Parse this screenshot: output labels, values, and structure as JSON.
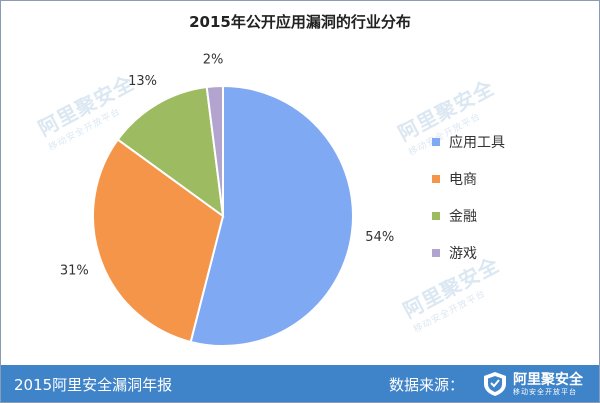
{
  "chart_data": {
    "type": "pie",
    "title": "2015年公开应用漏洞的行业分布",
    "slices": [
      {
        "label": "应用工具",
        "value": 54,
        "value_label": "54%",
        "color": "#7fa9f2"
      },
      {
        "label": "电商",
        "value": 31,
        "value_label": "31%",
        "color": "#f5954a"
      },
      {
        "label": "金融",
        "value": 13,
        "value_label": "13%",
        "color": "#9dbb61"
      },
      {
        "label": "游戏",
        "value": 2,
        "value_label": "2%",
        "color": "#b2a3cf"
      }
    ],
    "legend_position": "right"
  },
  "watermark": {
    "main": "阿里聚安全",
    "sub": "移动安全开放平台"
  },
  "footer": {
    "left_text": "2015阿里安全漏洞年报",
    "right_text": "数据来源：",
    "brand_main": "阿里聚安全",
    "brand_sub": "移动安全开放平台",
    "background": "#3f83c8",
    "logo_icon": "shield-icon"
  }
}
